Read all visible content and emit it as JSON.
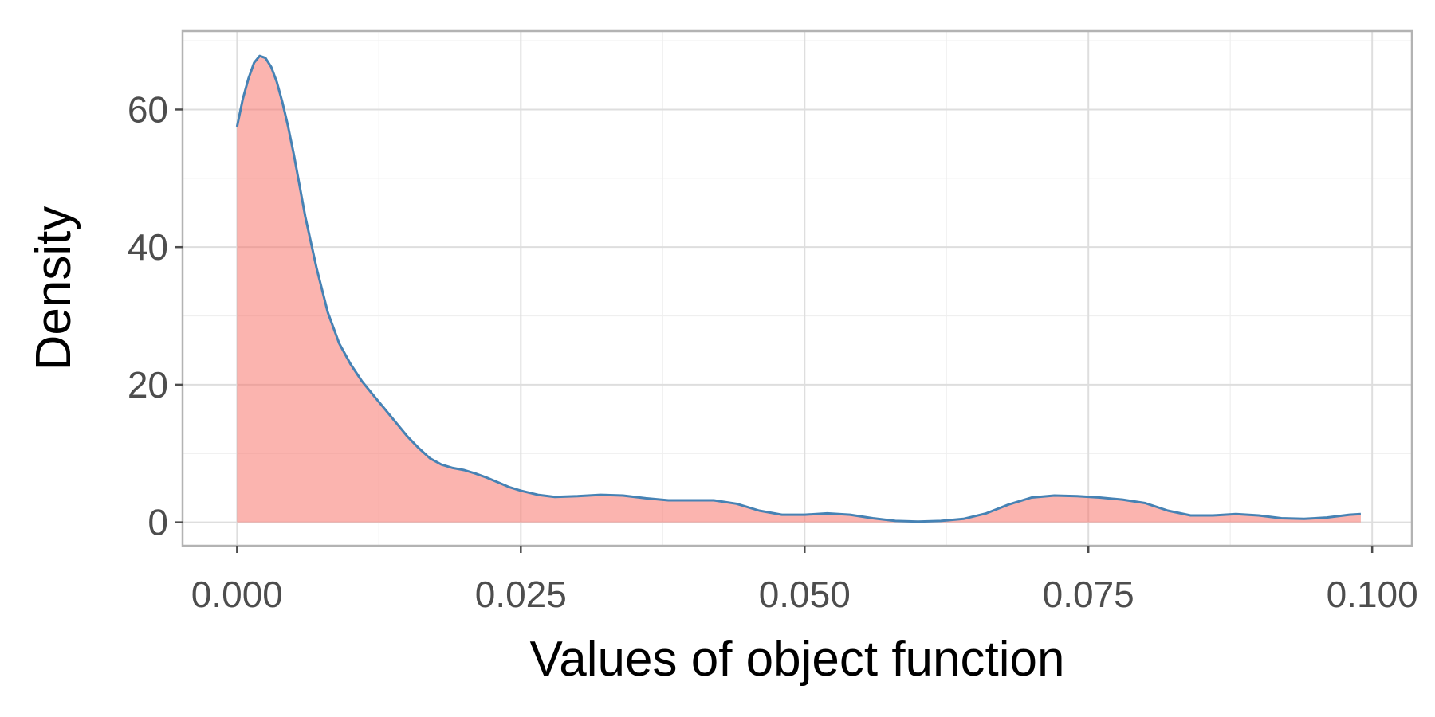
{
  "chart_data": {
    "type": "area",
    "title": "",
    "xlabel": "Values of object function",
    "ylabel": "Density",
    "xlim": [
      -0.0048,
      0.1035
    ],
    "ylim": [
      -3.4,
      71.4
    ],
    "x_ticks": [
      {
        "value": 0.0,
        "label": "0.000"
      },
      {
        "value": 0.025,
        "label": "0.025"
      },
      {
        "value": 0.05,
        "label": "0.050"
      },
      {
        "value": 0.075,
        "label": "0.075"
      },
      {
        "value": 0.1,
        "label": "0.100"
      }
    ],
    "y_ticks": [
      {
        "value": 0,
        "label": "0"
      },
      {
        "value": 20,
        "label": "20"
      },
      {
        "value": 40,
        "label": "40"
      },
      {
        "value": 60,
        "label": "60"
      }
    ],
    "grid": true,
    "legend": "none",
    "series": [
      {
        "x": [
          0.0,
          0.0005,
          0.001,
          0.0015,
          0.002,
          0.0025,
          0.003,
          0.0035,
          0.004,
          0.0045,
          0.005,
          0.0055,
          0.006,
          0.007,
          0.008,
          0.009,
          0.01,
          0.011,
          0.012,
          0.013,
          0.014,
          0.015,
          0.016,
          0.017,
          0.018,
          0.019,
          0.02,
          0.021,
          0.022,
          0.023,
          0.024,
          0.025,
          0.0265,
          0.028,
          0.03,
          0.032,
          0.034,
          0.036,
          0.038,
          0.04,
          0.042,
          0.044,
          0.046,
          0.048,
          0.05,
          0.052,
          0.054,
          0.056,
          0.058,
          0.06,
          0.062,
          0.064,
          0.066,
          0.068,
          0.07,
          0.072,
          0.074,
          0.076,
          0.078,
          0.08,
          0.082,
          0.084,
          0.086,
          0.088,
          0.09,
          0.092,
          0.094,
          0.096,
          0.098,
          0.099
        ],
        "y": [
          57.5,
          61.5,
          64.5,
          66.8,
          67.8,
          67.5,
          66.2,
          64.0,
          61.0,
          57.5,
          53.5,
          49.0,
          44.5,
          37.0,
          30.5,
          26.0,
          23.0,
          20.5,
          18.5,
          16.5,
          14.5,
          12.5,
          10.8,
          9.3,
          8.4,
          7.9,
          7.6,
          7.1,
          6.5,
          5.8,
          5.1,
          4.6,
          4.0,
          3.7,
          3.8,
          4.0,
          3.9,
          3.5,
          3.2,
          3.2,
          3.2,
          2.7,
          1.7,
          1.1,
          1.1,
          1.3,
          1.1,
          0.6,
          0.2,
          0.1,
          0.2,
          0.5,
          1.3,
          2.6,
          3.6,
          3.9,
          3.8,
          3.6,
          3.3,
          2.8,
          1.7,
          1.0,
          1.0,
          1.2,
          1.0,
          0.6,
          0.5,
          0.7,
          1.1,
          1.2
        ]
      }
    ],
    "colors": {
      "fill": "#f8766d",
      "line": "#4682b4",
      "grid_major": "#dedede",
      "grid_minor": "#efefef",
      "panel_border": "#b3b3b3",
      "tick_mark": "#4d4d4d"
    }
  }
}
